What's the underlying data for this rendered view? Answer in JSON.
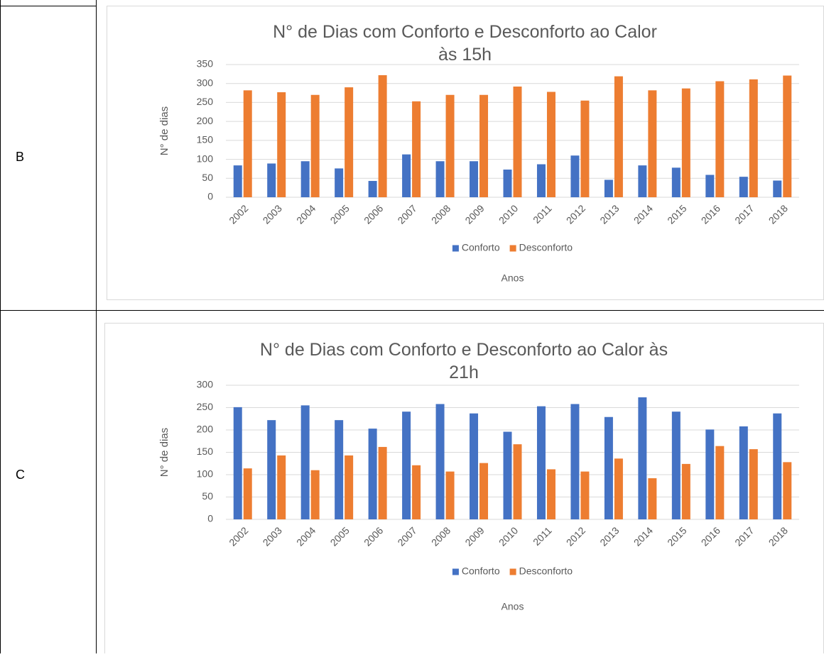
{
  "table": {
    "rows": [
      {
        "label": "B"
      },
      {
        "label": "C"
      }
    ]
  },
  "chart_data": [
    {
      "type": "bar",
      "title": "N° de Dias com Conforto e Desconforto ao Calor às 15h",
      "x_label": "Anos",
      "y_label": "N° de dias",
      "categories": [
        "2002",
        "2003",
        "2004",
        "2005",
        "2006",
        "2007",
        "2008",
        "2009",
        "2010",
        "2011",
        "2012",
        "2013",
        "2014",
        "2015",
        "2016",
        "2017",
        "2018"
      ],
      "series": [
        {
          "name": "Conforto",
          "color": "#4472c4",
          "values": [
            84,
            89,
            95,
            76,
            43,
            113,
            95,
            95,
            73,
            87,
            110,
            46,
            84,
            78,
            59,
            54,
            44
          ]
        },
        {
          "name": "Desconforto",
          "color": "#ed7d31",
          "values": [
            282,
            277,
            270,
            290,
            322,
            253,
            270,
            270,
            292,
            278,
            255,
            319,
            282,
            287,
            306,
            311,
            321
          ]
        }
      ],
      "ylim": [
        0,
        350
      ],
      "yticks": [
        0,
        50,
        100,
        150,
        200,
        250,
        300,
        350
      ],
      "grid": true,
      "legend": "bottom"
    },
    {
      "type": "bar",
      "title": "N° de Dias com Conforto e Desconforto ao Calor às 21h",
      "x_label": "Anos",
      "y_label": "N° de dias",
      "categories": [
        "2002",
        "2003",
        "2004",
        "2005",
        "2006",
        "2007",
        "2008",
        "2009",
        "2010",
        "2011",
        "2012",
        "2013",
        "2014",
        "2015",
        "2016",
        "2017",
        "2018"
      ],
      "series": [
        {
          "name": "Conforto",
          "color": "#4472c4",
          "values": [
            251,
            222,
            255,
            222,
            203,
            241,
            258,
            237,
            196,
            253,
            258,
            229,
            273,
            241,
            201,
            208,
            237
          ]
        },
        {
          "name": "Desconforto",
          "color": "#ed7d31",
          "values": [
            114,
            143,
            110,
            143,
            162,
            121,
            107,
            126,
            168,
            112,
            107,
            136,
            92,
            124,
            164,
            157,
            128
          ]
        }
      ],
      "ylim": [
        0,
        300
      ],
      "yticks": [
        0,
        50,
        100,
        150,
        200,
        250,
        300
      ],
      "grid": true,
      "legend": "bottom"
    }
  ]
}
